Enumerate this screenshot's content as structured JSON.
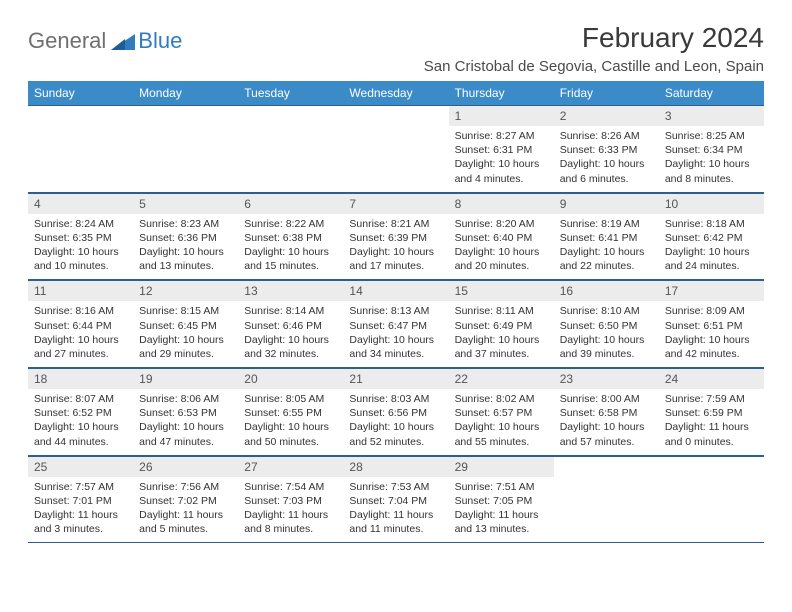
{
  "logo": {
    "general": "General",
    "blue": "Blue"
  },
  "title": "February 2024",
  "location": "San Cristobal de Segovia, Castille and Leon, Spain",
  "colors": {
    "header_bg": "#3b8bc9",
    "header_text": "#ffffff",
    "daynum_bg": "#ececec",
    "border": "#2e5f8a",
    "logo_gray": "#6f6f6f",
    "logo_blue": "#2f7dc0"
  },
  "daynames": [
    "Sunday",
    "Monday",
    "Tuesday",
    "Wednesday",
    "Thursday",
    "Friday",
    "Saturday"
  ],
  "weeks": [
    [
      {
        "empty": true
      },
      {
        "empty": true
      },
      {
        "empty": true
      },
      {
        "empty": true
      },
      {
        "num": "1",
        "sunrise": "Sunrise: 8:27 AM",
        "sunset": "Sunset: 6:31 PM",
        "daylight": "Daylight: 10 hours and 4 minutes."
      },
      {
        "num": "2",
        "sunrise": "Sunrise: 8:26 AM",
        "sunset": "Sunset: 6:33 PM",
        "daylight": "Daylight: 10 hours and 6 minutes."
      },
      {
        "num": "3",
        "sunrise": "Sunrise: 8:25 AM",
        "sunset": "Sunset: 6:34 PM",
        "daylight": "Daylight: 10 hours and 8 minutes."
      }
    ],
    [
      {
        "num": "4",
        "sunrise": "Sunrise: 8:24 AM",
        "sunset": "Sunset: 6:35 PM",
        "daylight": "Daylight: 10 hours and 10 minutes."
      },
      {
        "num": "5",
        "sunrise": "Sunrise: 8:23 AM",
        "sunset": "Sunset: 6:36 PM",
        "daylight": "Daylight: 10 hours and 13 minutes."
      },
      {
        "num": "6",
        "sunrise": "Sunrise: 8:22 AM",
        "sunset": "Sunset: 6:38 PM",
        "daylight": "Daylight: 10 hours and 15 minutes."
      },
      {
        "num": "7",
        "sunrise": "Sunrise: 8:21 AM",
        "sunset": "Sunset: 6:39 PM",
        "daylight": "Daylight: 10 hours and 17 minutes."
      },
      {
        "num": "8",
        "sunrise": "Sunrise: 8:20 AM",
        "sunset": "Sunset: 6:40 PM",
        "daylight": "Daylight: 10 hours and 20 minutes."
      },
      {
        "num": "9",
        "sunrise": "Sunrise: 8:19 AM",
        "sunset": "Sunset: 6:41 PM",
        "daylight": "Daylight: 10 hours and 22 minutes."
      },
      {
        "num": "10",
        "sunrise": "Sunrise: 8:18 AM",
        "sunset": "Sunset: 6:42 PM",
        "daylight": "Daylight: 10 hours and 24 minutes."
      }
    ],
    [
      {
        "num": "11",
        "sunrise": "Sunrise: 8:16 AM",
        "sunset": "Sunset: 6:44 PM",
        "daylight": "Daylight: 10 hours and 27 minutes."
      },
      {
        "num": "12",
        "sunrise": "Sunrise: 8:15 AM",
        "sunset": "Sunset: 6:45 PM",
        "daylight": "Daylight: 10 hours and 29 minutes."
      },
      {
        "num": "13",
        "sunrise": "Sunrise: 8:14 AM",
        "sunset": "Sunset: 6:46 PM",
        "daylight": "Daylight: 10 hours and 32 minutes."
      },
      {
        "num": "14",
        "sunrise": "Sunrise: 8:13 AM",
        "sunset": "Sunset: 6:47 PM",
        "daylight": "Daylight: 10 hours and 34 minutes."
      },
      {
        "num": "15",
        "sunrise": "Sunrise: 8:11 AM",
        "sunset": "Sunset: 6:49 PM",
        "daylight": "Daylight: 10 hours and 37 minutes."
      },
      {
        "num": "16",
        "sunrise": "Sunrise: 8:10 AM",
        "sunset": "Sunset: 6:50 PM",
        "daylight": "Daylight: 10 hours and 39 minutes."
      },
      {
        "num": "17",
        "sunrise": "Sunrise: 8:09 AM",
        "sunset": "Sunset: 6:51 PM",
        "daylight": "Daylight: 10 hours and 42 minutes."
      }
    ],
    [
      {
        "num": "18",
        "sunrise": "Sunrise: 8:07 AM",
        "sunset": "Sunset: 6:52 PM",
        "daylight": "Daylight: 10 hours and 44 minutes."
      },
      {
        "num": "19",
        "sunrise": "Sunrise: 8:06 AM",
        "sunset": "Sunset: 6:53 PM",
        "daylight": "Daylight: 10 hours and 47 minutes."
      },
      {
        "num": "20",
        "sunrise": "Sunrise: 8:05 AM",
        "sunset": "Sunset: 6:55 PM",
        "daylight": "Daylight: 10 hours and 50 minutes."
      },
      {
        "num": "21",
        "sunrise": "Sunrise: 8:03 AM",
        "sunset": "Sunset: 6:56 PM",
        "daylight": "Daylight: 10 hours and 52 minutes."
      },
      {
        "num": "22",
        "sunrise": "Sunrise: 8:02 AM",
        "sunset": "Sunset: 6:57 PM",
        "daylight": "Daylight: 10 hours and 55 minutes."
      },
      {
        "num": "23",
        "sunrise": "Sunrise: 8:00 AM",
        "sunset": "Sunset: 6:58 PM",
        "daylight": "Daylight: 10 hours and 57 minutes."
      },
      {
        "num": "24",
        "sunrise": "Sunrise: 7:59 AM",
        "sunset": "Sunset: 6:59 PM",
        "daylight": "Daylight: 11 hours and 0 minutes."
      }
    ],
    [
      {
        "num": "25",
        "sunrise": "Sunrise: 7:57 AM",
        "sunset": "Sunset: 7:01 PM",
        "daylight": "Daylight: 11 hours and 3 minutes."
      },
      {
        "num": "26",
        "sunrise": "Sunrise: 7:56 AM",
        "sunset": "Sunset: 7:02 PM",
        "daylight": "Daylight: 11 hours and 5 minutes."
      },
      {
        "num": "27",
        "sunrise": "Sunrise: 7:54 AM",
        "sunset": "Sunset: 7:03 PM",
        "daylight": "Daylight: 11 hours and 8 minutes."
      },
      {
        "num": "28",
        "sunrise": "Sunrise: 7:53 AM",
        "sunset": "Sunset: 7:04 PM",
        "daylight": "Daylight: 11 hours and 11 minutes."
      },
      {
        "num": "29",
        "sunrise": "Sunrise: 7:51 AM",
        "sunset": "Sunset: 7:05 PM",
        "daylight": "Daylight: 11 hours and 13 minutes."
      },
      {
        "empty": true
      },
      {
        "empty": true
      }
    ]
  ]
}
